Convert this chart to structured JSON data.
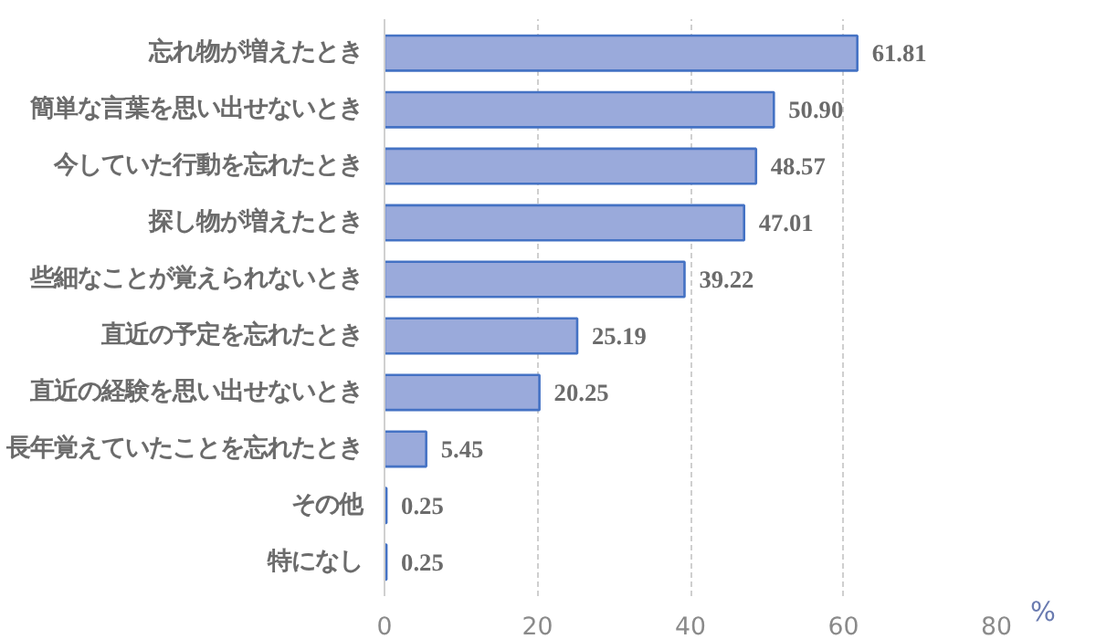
{
  "chart_data": {
    "type": "bar",
    "orientation": "horizontal",
    "categories": [
      "忘れ物が増えたとき",
      "簡単な言葉を思い出せないとき",
      "今していた行動を忘れたとき",
      "探し物が増えたとき",
      "些細なことが覚えられないとき",
      "直近の予定を忘れたとき",
      "直近の経験を思い出せないとき",
      "長年覚えていたことを忘れたとき",
      "その他",
      "特になし"
    ],
    "values": [
      61.81,
      50.9,
      48.57,
      47.01,
      39.22,
      25.19,
      20.25,
      5.45,
      0.25,
      0.25
    ],
    "value_labels": [
      "61.81",
      "50.90",
      "48.57",
      "47.01",
      "39.22",
      "25.19",
      "20.25",
      "5.45",
      "0.25",
      "0.25"
    ],
    "color": "#9aaadb",
    "xlabel": "%",
    "xlim": [
      0,
      80
    ],
    "xticks": [
      0,
      20,
      40,
      60,
      80
    ],
    "grid": "x"
  }
}
